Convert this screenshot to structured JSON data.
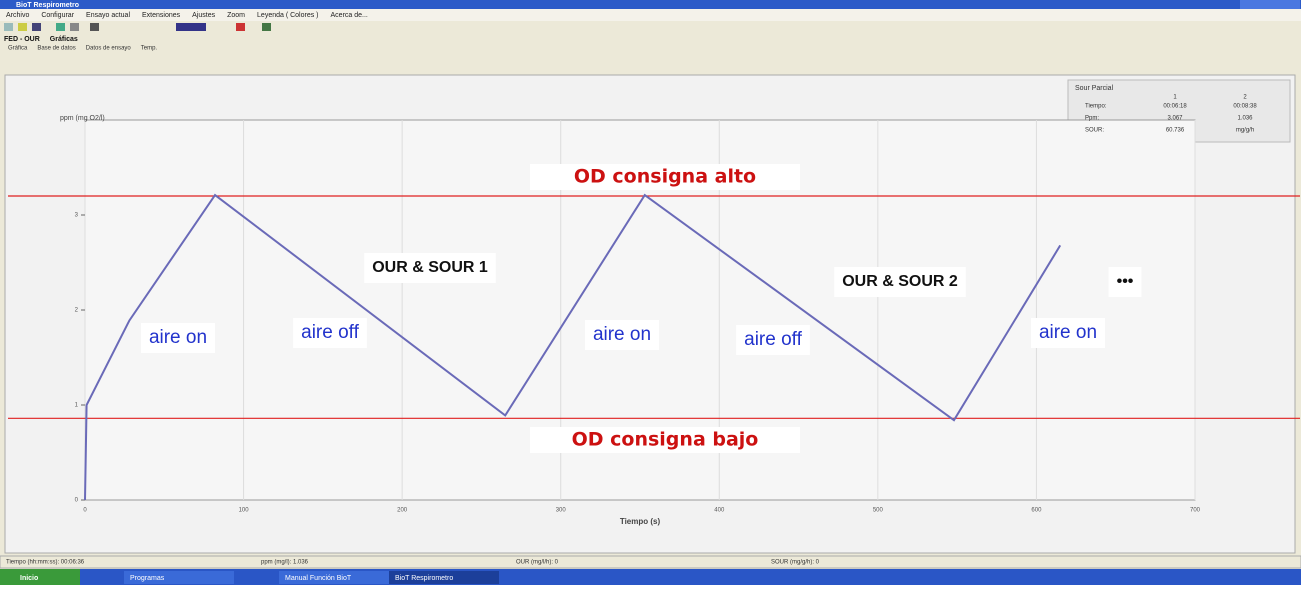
{
  "window": {
    "title": "BioT Respirometro",
    "menu": [
      "Archivo",
      "Configurar",
      "Ensayo actual",
      "Extensiones",
      "Ajustes",
      "Zoom",
      "Leyenda ( Colores )",
      "Acerca de..."
    ],
    "tabs": [
      "FED - OUR",
      "Gráficas"
    ],
    "subtabs": [
      "Gráfica",
      "Base de datos",
      "Datos de ensayo",
      "Temp."
    ]
  },
  "chart_data": {
    "type": "line",
    "y_label": "ppm (mg O2/l)",
    "x_label": "Tiempo (s)",
    "xlim": [
      0,
      700
    ],
    "xticks": [
      0,
      100,
      200,
      300,
      400,
      500,
      600,
      700
    ],
    "ylim": [
      0,
      4
    ],
    "yticks": [
      0,
      1,
      2,
      3
    ],
    "series": [
      {
        "color": "#6a6ab8",
        "x": [
          0,
          1,
          28,
          82,
          265,
          353,
          548,
          615
        ],
        "values": [
          0,
          1.0,
          1.89,
          3.21,
          0.89,
          3.21,
          0.84,
          2.68
        ]
      }
    ],
    "reference_lines": [
      {
        "label": "OD consigna alto",
        "value": 3.2,
        "color": "#e02020"
      },
      {
        "label": "OD consigna bajo",
        "value": 0.86,
        "color": "#e02020"
      }
    ],
    "annotations": [
      "OUR & SOUR 1",
      "OUR & SOUR 2",
      "•••",
      "aire on",
      "aire off",
      "aire on",
      "aire off",
      "aire on"
    ]
  },
  "panel": {
    "title": "Sour Parcial",
    "columns": [
      "1",
      "2"
    ],
    "rows": [
      [
        "Tiempo:",
        "00:06:18",
        "00:08:38"
      ],
      [
        "Ppm:",
        "3.067",
        "1.036"
      ],
      [
        "SOUR:",
        "60.736",
        "mg/g/h"
      ]
    ]
  },
  "status": [
    "Tiempo (hh:mm:ss): 00:06:36",
    "ppm (mg/l): 1.036",
    "OUR (mg/l/h): 0",
    "SOUR (mg/g/h): 0"
  ],
  "taskbar": [
    "Inicio",
    "Programas",
    "Manual Función BioT",
    "BioT Respirometro"
  ]
}
